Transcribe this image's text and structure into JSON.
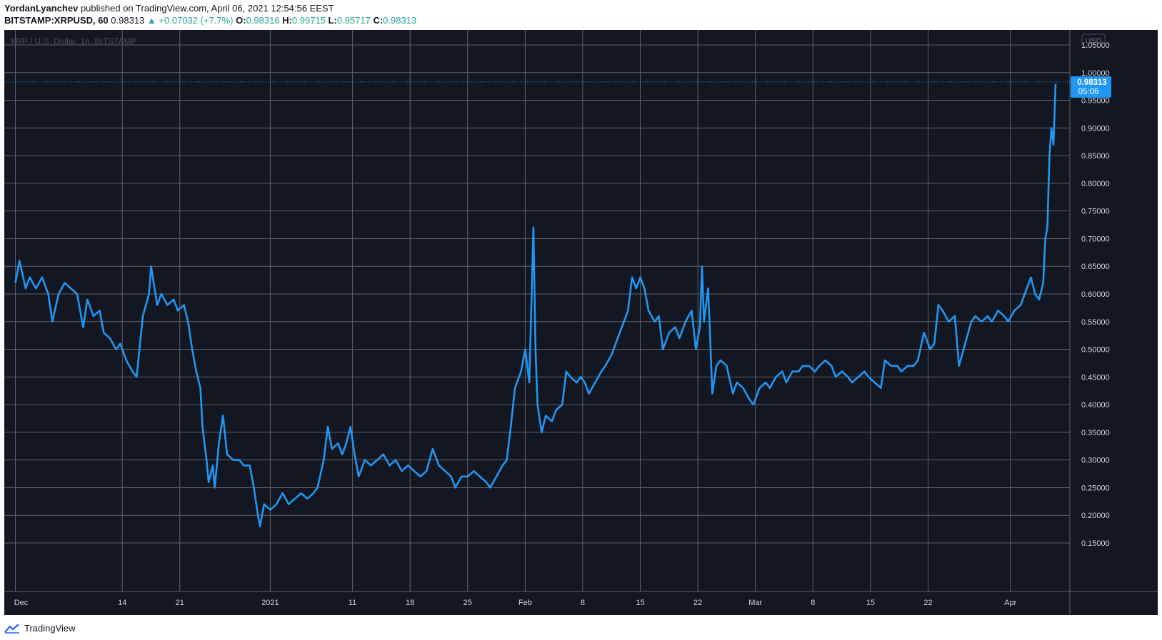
{
  "header": {
    "author": "YordanLyanchev",
    "published_text": "published on TradingView.com, April 06, 2021 12:54:56 EEST",
    "symbol": "BITSTAMP:XRPUSD, 60",
    "last": "0.98313",
    "change": "▲ +0.07032 (+7.7%)",
    "o_label": "O:",
    "o_value": "0.98316",
    "h_label": "H:",
    "h_value": "0.99715",
    "l_label": "L:",
    "l_value": "0.95717",
    "c_label": "C:",
    "c_value": "0.98313"
  },
  "chart_title": "XRP / U.S. Dollar, 1h, BITSTAMP",
  "currency_button": "USD",
  "price_label": {
    "price": "0.98313",
    "countdown": "05:06"
  },
  "footer": {
    "brand": "TradingView"
  },
  "colors": {
    "background": "#131722",
    "line": "#2196f3",
    "grid": "#5d6066",
    "axis_text": "#d1d4dc",
    "price_badge": "#2196f3",
    "up": "#26a69a"
  },
  "chart_data": {
    "type": "line",
    "title": "XRP / U.S. Dollar, 1h, BITSTAMP",
    "ylim": [
      0.1,
      1.06
    ],
    "xlim": [
      "2020-11-30",
      "2021-04-06T12:00"
    ],
    "y_ticks": [
      "1.05000",
      "1.00000",
      "0.95000",
      "0.90000",
      "0.85000",
      "0.80000",
      "0.75000",
      "0.70000",
      "0.65000",
      "0.60000",
      "0.55000",
      "0.50000",
      "0.45000",
      "0.40000",
      "0.35000",
      "0.30000",
      "0.25000",
      "0.20000",
      "0.15000"
    ],
    "x_ticks": [
      {
        "label": "Dec",
        "date": "2020-12-01"
      },
      {
        "label": "14",
        "date": "2020-12-14"
      },
      {
        "label": "21",
        "date": "2020-12-21"
      },
      {
        "label": "2021",
        "date": "2021-01-01"
      },
      {
        "label": "11",
        "date": "2021-01-11"
      },
      {
        "label": "18",
        "date": "2021-01-18"
      },
      {
        "label": "25",
        "date": "2021-01-25"
      },
      {
        "label": "Feb",
        "date": "2021-02-01"
      },
      {
        "label": "8",
        "date": "2021-02-08"
      },
      {
        "label": "15",
        "date": "2021-02-15"
      },
      {
        "label": "22",
        "date": "2021-02-22"
      },
      {
        "label": "Mar",
        "date": "2021-03-01"
      },
      {
        "label": "8",
        "date": "2021-03-08"
      },
      {
        "label": "15",
        "date": "2021-03-15"
      },
      {
        "label": "22",
        "date": "2021-03-22"
      },
      {
        "label": "Apr",
        "date": "2021-04-01"
      }
    ],
    "grid": true,
    "last_value": 0.98313,
    "series": [
      {
        "points": [
          [
            "2020-12-01T00:00",
            0.62
          ],
          [
            "2020-12-01T12:00",
            0.66
          ],
          [
            "2020-12-02T06:00",
            0.61
          ],
          [
            "2020-12-02T18:00",
            0.63
          ],
          [
            "2020-12-03T12:00",
            0.61
          ],
          [
            "2020-12-04T06:00",
            0.63
          ],
          [
            "2020-12-05T00:00",
            0.6
          ],
          [
            "2020-12-05T12:00",
            0.55
          ],
          [
            "2020-12-06T06:00",
            0.6
          ],
          [
            "2020-12-07T00:00",
            0.62
          ],
          [
            "2020-12-07T18:00",
            0.61
          ],
          [
            "2020-12-08T12:00",
            0.6
          ],
          [
            "2020-12-09T06:00",
            0.54
          ],
          [
            "2020-12-09T18:00",
            0.59
          ],
          [
            "2020-12-10T12:00",
            0.56
          ],
          [
            "2020-12-11T06:00",
            0.57
          ],
          [
            "2020-12-11T18:00",
            0.53
          ],
          [
            "2020-12-12T12:00",
            0.52
          ],
          [
            "2020-12-13T06:00",
            0.5
          ],
          [
            "2020-12-13T18:00",
            0.51
          ],
          [
            "2020-12-14T12:00",
            0.48
          ],
          [
            "2020-12-15T06:00",
            0.46
          ],
          [
            "2020-12-15T18:00",
            0.45
          ],
          [
            "2020-12-16T12:00",
            0.56
          ],
          [
            "2020-12-17T06:00",
            0.6
          ],
          [
            "2020-12-17T12:00",
            0.65
          ],
          [
            "2020-12-18T06:00",
            0.58
          ],
          [
            "2020-12-18T18:00",
            0.6
          ],
          [
            "2020-12-19T12:00",
            0.58
          ],
          [
            "2020-12-20T06:00",
            0.59
          ],
          [
            "2020-12-20T18:00",
            0.57
          ],
          [
            "2020-12-21T12:00",
            0.58
          ],
          [
            "2020-12-22T00:00",
            0.55
          ],
          [
            "2020-12-22T12:00",
            0.5
          ],
          [
            "2020-12-23T00:00",
            0.46
          ],
          [
            "2020-12-23T12:00",
            0.43
          ],
          [
            "2020-12-23T18:00",
            0.36
          ],
          [
            "2020-12-24T06:00",
            0.3
          ],
          [
            "2020-12-24T12:00",
            0.26
          ],
          [
            "2020-12-25T00:00",
            0.29
          ],
          [
            "2020-12-25T06:00",
            0.25
          ],
          [
            "2020-12-25T18:00",
            0.33
          ],
          [
            "2020-12-26T06:00",
            0.38
          ],
          [
            "2020-12-26T18:00",
            0.31
          ],
          [
            "2020-12-27T12:00",
            0.3
          ],
          [
            "2020-12-28T06:00",
            0.3
          ],
          [
            "2020-12-28T18:00",
            0.29
          ],
          [
            "2020-12-29T12:00",
            0.29
          ],
          [
            "2020-12-30T00:00",
            0.25
          ],
          [
            "2020-12-30T12:00",
            0.2
          ],
          [
            "2020-12-30T18:00",
            0.18
          ],
          [
            "2020-12-31T06:00",
            0.22
          ],
          [
            "2021-01-01T00:00",
            0.21
          ],
          [
            "2021-01-01T18:00",
            0.22
          ],
          [
            "2021-01-02T12:00",
            0.24
          ],
          [
            "2021-01-03T06:00",
            0.22
          ],
          [
            "2021-01-04T00:00",
            0.23
          ],
          [
            "2021-01-04T18:00",
            0.24
          ],
          [
            "2021-01-05T12:00",
            0.23
          ],
          [
            "2021-01-06T06:00",
            0.24
          ],
          [
            "2021-01-06T18:00",
            0.25
          ],
          [
            "2021-01-07T12:00",
            0.3
          ],
          [
            "2021-01-08T00:00",
            0.36
          ],
          [
            "2021-01-08T12:00",
            0.32
          ],
          [
            "2021-01-09T06:00",
            0.33
          ],
          [
            "2021-01-09T18:00",
            0.31
          ],
          [
            "2021-01-10T06:00",
            0.33
          ],
          [
            "2021-01-10T18:00",
            0.36
          ],
          [
            "2021-01-11T06:00",
            0.31
          ],
          [
            "2021-01-11T18:00",
            0.27
          ],
          [
            "2021-01-12T12:00",
            0.3
          ],
          [
            "2021-01-13T06:00",
            0.29
          ],
          [
            "2021-01-14T00:00",
            0.3
          ],
          [
            "2021-01-14T18:00",
            0.31
          ],
          [
            "2021-01-15T12:00",
            0.29
          ],
          [
            "2021-01-16T06:00",
            0.3
          ],
          [
            "2021-01-17T00:00",
            0.28
          ],
          [
            "2021-01-17T18:00",
            0.29
          ],
          [
            "2021-01-18T12:00",
            0.28
          ],
          [
            "2021-01-19T06:00",
            0.27
          ],
          [
            "2021-01-20T00:00",
            0.28
          ],
          [
            "2021-01-20T18:00",
            0.32
          ],
          [
            "2021-01-21T12:00",
            0.29
          ],
          [
            "2021-01-22T06:00",
            0.28
          ],
          [
            "2021-01-23T00:00",
            0.27
          ],
          [
            "2021-01-23T12:00",
            0.25
          ],
          [
            "2021-01-24T06:00",
            0.27
          ],
          [
            "2021-01-25T00:00",
            0.27
          ],
          [
            "2021-01-25T18:00",
            0.28
          ],
          [
            "2021-01-26T12:00",
            0.27
          ],
          [
            "2021-01-27T06:00",
            0.26
          ],
          [
            "2021-01-27T18:00",
            0.25
          ],
          [
            "2021-01-28T12:00",
            0.27
          ],
          [
            "2021-01-29T06:00",
            0.29
          ],
          [
            "2021-01-29T18:00",
            0.3
          ],
          [
            "2021-01-30T06:00",
            0.36
          ],
          [
            "2021-01-30T18:00",
            0.43
          ],
          [
            "2021-01-31T12:00",
            0.46
          ],
          [
            "2021-02-01T00:00",
            0.5
          ],
          [
            "2021-02-01T12:00",
            0.44
          ],
          [
            "2021-02-01T18:00",
            0.58
          ],
          [
            "2021-02-02T00:00",
            0.72
          ],
          [
            "2021-02-02T06:00",
            0.5
          ],
          [
            "2021-02-02T12:00",
            0.4
          ],
          [
            "2021-02-03T00:00",
            0.35
          ],
          [
            "2021-02-03T12:00",
            0.38
          ],
          [
            "2021-02-04T06:00",
            0.37
          ],
          [
            "2021-02-04T18:00",
            0.39
          ],
          [
            "2021-02-05T12:00",
            0.4
          ],
          [
            "2021-02-06T00:00",
            0.46
          ],
          [
            "2021-02-06T12:00",
            0.45
          ],
          [
            "2021-02-07T06:00",
            0.44
          ],
          [
            "2021-02-07T18:00",
            0.45
          ],
          [
            "2021-02-08T06:00",
            0.44
          ],
          [
            "2021-02-08T18:00",
            0.42
          ],
          [
            "2021-02-09T12:00",
            0.44
          ],
          [
            "2021-02-10T06:00",
            0.46
          ],
          [
            "2021-02-10T18:00",
            0.47
          ],
          [
            "2021-02-11T12:00",
            0.49
          ],
          [
            "2021-02-12T06:00",
            0.52
          ],
          [
            "2021-02-12T18:00",
            0.54
          ],
          [
            "2021-02-13T12:00",
            0.57
          ],
          [
            "2021-02-14T00:00",
            0.63
          ],
          [
            "2021-02-14T12:00",
            0.61
          ],
          [
            "2021-02-15T00:00",
            0.63
          ],
          [
            "2021-02-15T12:00",
            0.61
          ],
          [
            "2021-02-16T00:00",
            0.57
          ],
          [
            "2021-02-16T18:00",
            0.55
          ],
          [
            "2021-02-17T06:00",
            0.56
          ],
          [
            "2021-02-17T18:00",
            0.5
          ],
          [
            "2021-02-18T12:00",
            0.53
          ],
          [
            "2021-02-19T06:00",
            0.54
          ],
          [
            "2021-02-19T18:00",
            0.52
          ],
          [
            "2021-02-20T12:00",
            0.55
          ],
          [
            "2021-02-21T06:00",
            0.57
          ],
          [
            "2021-02-21T18:00",
            0.5
          ],
          [
            "2021-02-22T06:00",
            0.54
          ],
          [
            "2021-02-22T12:00",
            0.65
          ],
          [
            "2021-02-22T18:00",
            0.55
          ],
          [
            "2021-02-23T06:00",
            0.61
          ],
          [
            "2021-02-23T12:00",
            0.52
          ],
          [
            "2021-02-23T18:00",
            0.42
          ],
          [
            "2021-02-24T06:00",
            0.47
          ],
          [
            "2021-02-24T18:00",
            0.48
          ],
          [
            "2021-02-25T12:00",
            0.47
          ],
          [
            "2021-02-26T06:00",
            0.42
          ],
          [
            "2021-02-26T18:00",
            0.44
          ],
          [
            "2021-02-27T12:00",
            0.43
          ],
          [
            "2021-02-28T06:00",
            0.41
          ],
          [
            "2021-02-28T18:00",
            0.4
          ],
          [
            "2021-03-01T12:00",
            0.43
          ],
          [
            "2021-03-02T06:00",
            0.44
          ],
          [
            "2021-03-02T18:00",
            0.43
          ],
          [
            "2021-03-03T12:00",
            0.45
          ],
          [
            "2021-03-04T06:00",
            0.46
          ],
          [
            "2021-03-04T18:00",
            0.44
          ],
          [
            "2021-03-05T12:00",
            0.46
          ],
          [
            "2021-03-06T06:00",
            0.46
          ],
          [
            "2021-03-06T18:00",
            0.47
          ],
          [
            "2021-03-07T12:00",
            0.47
          ],
          [
            "2021-03-08T06:00",
            0.46
          ],
          [
            "2021-03-08T18:00",
            0.47
          ],
          [
            "2021-03-09T12:00",
            0.48
          ],
          [
            "2021-03-10T06:00",
            0.47
          ],
          [
            "2021-03-10T18:00",
            0.45
          ],
          [
            "2021-03-11T12:00",
            0.46
          ],
          [
            "2021-03-12T06:00",
            0.45
          ],
          [
            "2021-03-12T18:00",
            0.44
          ],
          [
            "2021-03-13T12:00",
            0.45
          ],
          [
            "2021-03-14T06:00",
            0.46
          ],
          [
            "2021-03-14T18:00",
            0.45
          ],
          [
            "2021-03-15T12:00",
            0.44
          ],
          [
            "2021-03-16T06:00",
            0.43
          ],
          [
            "2021-03-16T18:00",
            0.48
          ],
          [
            "2021-03-17T12:00",
            0.47
          ],
          [
            "2021-03-18T06:00",
            0.47
          ],
          [
            "2021-03-18T18:00",
            0.46
          ],
          [
            "2021-03-19T12:00",
            0.47
          ],
          [
            "2021-03-20T06:00",
            0.47
          ],
          [
            "2021-03-20T18:00",
            0.48
          ],
          [
            "2021-03-21T12:00",
            0.53
          ],
          [
            "2021-03-22T06:00",
            0.5
          ],
          [
            "2021-03-22T18:00",
            0.51
          ],
          [
            "2021-03-23T06:00",
            0.58
          ],
          [
            "2021-03-23T18:00",
            0.57
          ],
          [
            "2021-03-24T12:00",
            0.55
          ],
          [
            "2021-03-25T06:00",
            0.56
          ],
          [
            "2021-03-25T18:00",
            0.47
          ],
          [
            "2021-03-26T12:00",
            0.51
          ],
          [
            "2021-03-27T06:00",
            0.55
          ],
          [
            "2021-03-27T18:00",
            0.56
          ],
          [
            "2021-03-28T12:00",
            0.55
          ],
          [
            "2021-03-29T06:00",
            0.56
          ],
          [
            "2021-03-29T18:00",
            0.55
          ],
          [
            "2021-03-30T12:00",
            0.57
          ],
          [
            "2021-03-31T06:00",
            0.56
          ],
          [
            "2021-03-31T18:00",
            0.55
          ],
          [
            "2021-04-01T12:00",
            0.57
          ],
          [
            "2021-04-02T06:00",
            0.58
          ],
          [
            "2021-04-02T18:00",
            0.6
          ],
          [
            "2021-04-03T12:00",
            0.63
          ],
          [
            "2021-04-04T00:00",
            0.6
          ],
          [
            "2021-04-04T12:00",
            0.59
          ],
          [
            "2021-04-05T00:00",
            0.62
          ],
          [
            "2021-04-05T06:00",
            0.7
          ],
          [
            "2021-04-05T12:00",
            0.72
          ],
          [
            "2021-04-05T18:00",
            0.85
          ],
          [
            "2021-04-06T00:00",
            0.9
          ],
          [
            "2021-04-06T06:00",
            0.87
          ],
          [
            "2021-04-06T12:00",
            0.98
          ]
        ]
      }
    ]
  }
}
